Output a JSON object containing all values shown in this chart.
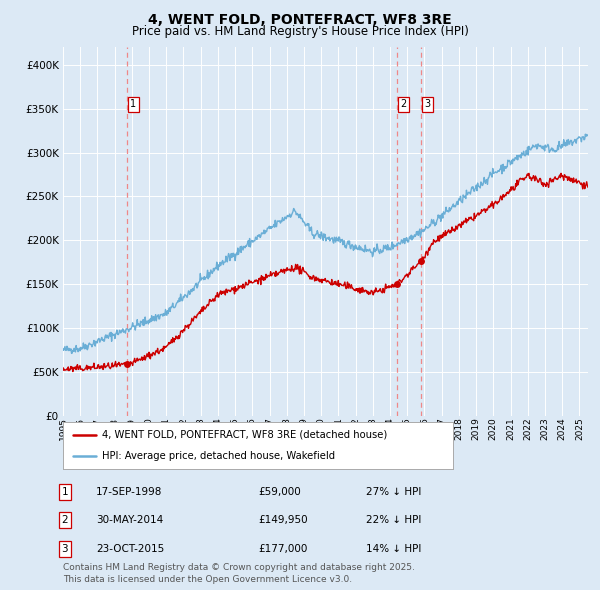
{
  "title": "4, WENT FOLD, PONTEFRACT, WF8 3RE",
  "subtitle": "Price paid vs. HM Land Registry's House Price Index (HPI)",
  "title_fontsize": 10,
  "subtitle_fontsize": 8.5,
  "background_color": "#dce9f5",
  "plot_bg_color": "#dce9f5",
  "hpi_color": "#6aaed6",
  "price_color": "#cc0000",
  "vline_color": "#ee8888",
  "ylim": [
    0,
    420000
  ],
  "yticks": [
    0,
    50000,
    100000,
    150000,
    200000,
    250000,
    300000,
    350000,
    400000
  ],
  "legend_label_price": "4, WENT FOLD, PONTEFRACT, WF8 3RE (detached house)",
  "legend_label_hpi": "HPI: Average price, detached house, Wakefield",
  "transactions": [
    {
      "label": "1",
      "date": "17-SEP-1998",
      "price": 59000,
      "pct": "27% ↓ HPI",
      "x_year": 1998.71
    },
    {
      "label": "2",
      "date": "30-MAY-2014",
      "price": 149950,
      "pct": "22% ↓ HPI",
      "x_year": 2014.41
    },
    {
      "label": "3",
      "date": "23-OCT-2015",
      "price": 177000,
      "pct": "14% ↓ HPI",
      "x_year": 2015.81
    }
  ],
  "footer": "Contains HM Land Registry data © Crown copyright and database right 2025.\nThis data is licensed under the Open Government Licence v3.0.",
  "footer_fontsize": 6.5,
  "xmin": 1995,
  "xmax": 2025.5
}
